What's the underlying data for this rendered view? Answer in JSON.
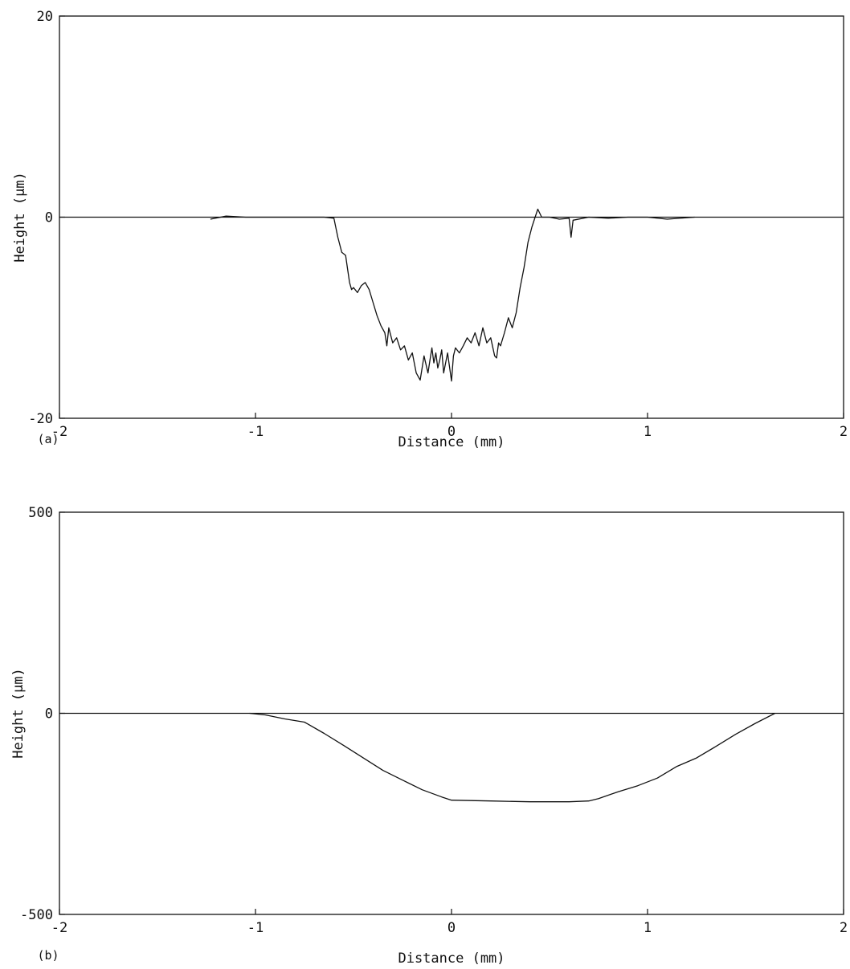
{
  "chart_data": [
    {
      "type": "line",
      "panel_label": "(a)",
      "xlabel": "Distance (mm)",
      "ylabel": "Height (μm)",
      "xlim": [
        -2,
        2
      ],
      "ylim": [
        -20,
        20
      ],
      "x_ticks": [
        -2,
        -1,
        0,
        1,
        2
      ],
      "x_tick_labels": [
        "-2",
        "-1",
        "0",
        "1",
        "2"
      ],
      "y_ticks": [
        -20,
        0,
        20
      ],
      "y_tick_labels": [
        "-20",
        "0",
        "20"
      ],
      "zero_line": true,
      "grid": false,
      "series": [
        {
          "x": [
            -1.23,
            -1.15,
            -1.05,
            -0.95,
            -0.85,
            -0.75,
            -0.65,
            -0.6,
            -0.58,
            -0.56,
            -0.54,
            -0.53,
            -0.52,
            -0.51,
            -0.5,
            -0.48,
            -0.46,
            -0.44,
            -0.42,
            -0.4,
            -0.38,
            -0.36,
            -0.34,
            -0.33,
            -0.32,
            -0.3,
            -0.28,
            -0.26,
            -0.24,
            -0.22,
            -0.2,
            -0.18,
            -0.16,
            -0.15,
            -0.14,
            -0.12,
            -0.11,
            -0.1,
            -0.09,
            -0.08,
            -0.07,
            -0.06,
            -0.05,
            -0.04,
            -0.02,
            0.0,
            0.01,
            0.02,
            0.04,
            0.06,
            0.08,
            0.1,
            0.12,
            0.14,
            0.16,
            0.18,
            0.2,
            0.22,
            0.23,
            0.24,
            0.25,
            0.27,
            0.29,
            0.31,
            0.33,
            0.35,
            0.37,
            0.39,
            0.41,
            0.43,
            0.44,
            0.46,
            0.5,
            0.55,
            0.6,
            0.61,
            0.62,
            0.7,
            0.8,
            0.9,
            1.0,
            1.1,
            1.24
          ],
          "y": [
            -0.2,
            0.1,
            0.0,
            0.0,
            0.0,
            0.0,
            0.0,
            -0.1,
            -2.0,
            -3.5,
            -3.8,
            -5.2,
            -6.5,
            -7.2,
            -7.0,
            -7.5,
            -6.8,
            -6.5,
            -7.2,
            -8.5,
            -9.8,
            -10.8,
            -11.5,
            -12.8,
            -11.0,
            -12.5,
            -12.0,
            -13.2,
            -12.8,
            -14.2,
            -13.5,
            -15.5,
            -16.2,
            -15.0,
            -13.8,
            -15.5,
            -14.2,
            -13.0,
            -14.5,
            -13.5,
            -15.0,
            -14.2,
            -13.2,
            -15.5,
            -13.5,
            -16.3,
            -13.8,
            -13.0,
            -13.5,
            -12.8,
            -12.0,
            -12.5,
            -11.5,
            -12.8,
            -11.0,
            -12.5,
            -12.0,
            -13.8,
            -14.0,
            -12.5,
            -12.8,
            -11.5,
            -10.0,
            -11.0,
            -9.5,
            -7.0,
            -5.0,
            -2.5,
            -1.0,
            0.2,
            0.8,
            0.0,
            0.0,
            -0.2,
            -0.1,
            -2.0,
            -0.3,
            0.0,
            -0.1,
            0.0,
            0.0,
            -0.2,
            0.0
          ]
        }
      ]
    },
    {
      "type": "line",
      "panel_label": "(b)",
      "xlabel": "Distance (mm)",
      "ylabel": "Height (μm)",
      "xlim": [
        -2,
        2
      ],
      "ylim": [
        -500,
        500
      ],
      "x_ticks": [
        -2,
        -1,
        0,
        1,
        2
      ],
      "x_tick_labels": [
        "-2",
        "-1",
        "0",
        "1",
        "2"
      ],
      "y_ticks": [
        -500,
        0,
        500
      ],
      "y_tick_labels": [
        "-500",
        "0",
        "500"
      ],
      "zero_line": true,
      "grid": false,
      "series": [
        {
          "x": [
            -1.03,
            -0.95,
            -0.85,
            -0.75,
            -0.65,
            -0.55,
            -0.45,
            -0.35,
            -0.25,
            -0.15,
            -0.05,
            0.0,
            0.2,
            0.4,
            0.6,
            0.7,
            0.75,
            0.85,
            0.95,
            1.05,
            1.15,
            1.25,
            1.35,
            1.45,
            1.55,
            1.65
          ],
          "y": [
            0,
            -4,
            -14,
            -22,
            -50,
            -80,
            -111,
            -142,
            -166,
            -190,
            -208,
            -216,
            -218,
            -220,
            -220,
            -218,
            -212,
            -195,
            -180,
            -161,
            -132,
            -111,
            -82,
            -52,
            -25,
            0
          ]
        }
      ]
    }
  ]
}
